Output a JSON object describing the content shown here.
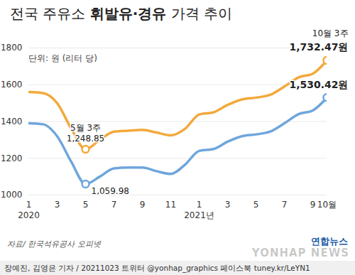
{
  "chart_data": {
    "type": "line",
    "title": "전국 주유소 휘발유·경유 가격 추이",
    "subtitle": "단위: 원 (리터 당)",
    "categories": [
      "1",
      null,
      "3",
      null,
      "5",
      null,
      "7",
      null,
      "9",
      null,
      "11",
      null,
      "1",
      null,
      "3",
      null,
      "5",
      null,
      "7",
      null,
      "9",
      "10월"
    ],
    "year_labels": [
      {
        "text": "2020",
        "at": 0
      },
      {
        "text": "2021년",
        "at": 12
      }
    ],
    "series": [
      {
        "name": "휘발유",
        "color": "#f2a93b",
        "values": [
          1560,
          1555,
          1500,
          1360,
          1248.85,
          1300,
          1345,
          1350,
          1355,
          1340,
          1325,
          1360,
          1438,
          1450,
          1490,
          1520,
          1530,
          1545,
          1590,
          1640,
          1660,
          1732.47
        ]
      },
      {
        "name": "경유",
        "color": "#6ea6dc",
        "values": [
          1390,
          1385,
          1320,
          1180,
          1059.98,
          1100,
          1145,
          1150,
          1150,
          1130,
          1115,
          1165,
          1240,
          1250,
          1290,
          1320,
          1330,
          1345,
          1390,
          1440,
          1460,
          1530.42
        ]
      }
    ],
    "ylim": [
      1000,
      1800
    ],
    "yticks": [
      1000,
      1200,
      1400,
      1600,
      1800
    ],
    "grid": true,
    "point_labels": [
      {
        "series": "휘발유",
        "at": 4,
        "note": "5월 3주",
        "label": "1,248.85"
      },
      {
        "series": "경유",
        "at": 4,
        "label": "1,059.98"
      },
      {
        "series": "휘발유",
        "at": 21,
        "note": "10월 3주",
        "label": "1,732.47원"
      },
      {
        "series": "경유",
        "at": 21,
        "label": "1,530.42원"
      }
    ],
    "source": "자료/ 한국석유공사 오피넷",
    "logo": "연합뉴스",
    "watermark": "YONHAP NEWS",
    "footer": "장예진, 김영은 기자 / 20211023 트위터 @yonhap_graphics 페이스북 tuney.kr/LeYN1"
  }
}
